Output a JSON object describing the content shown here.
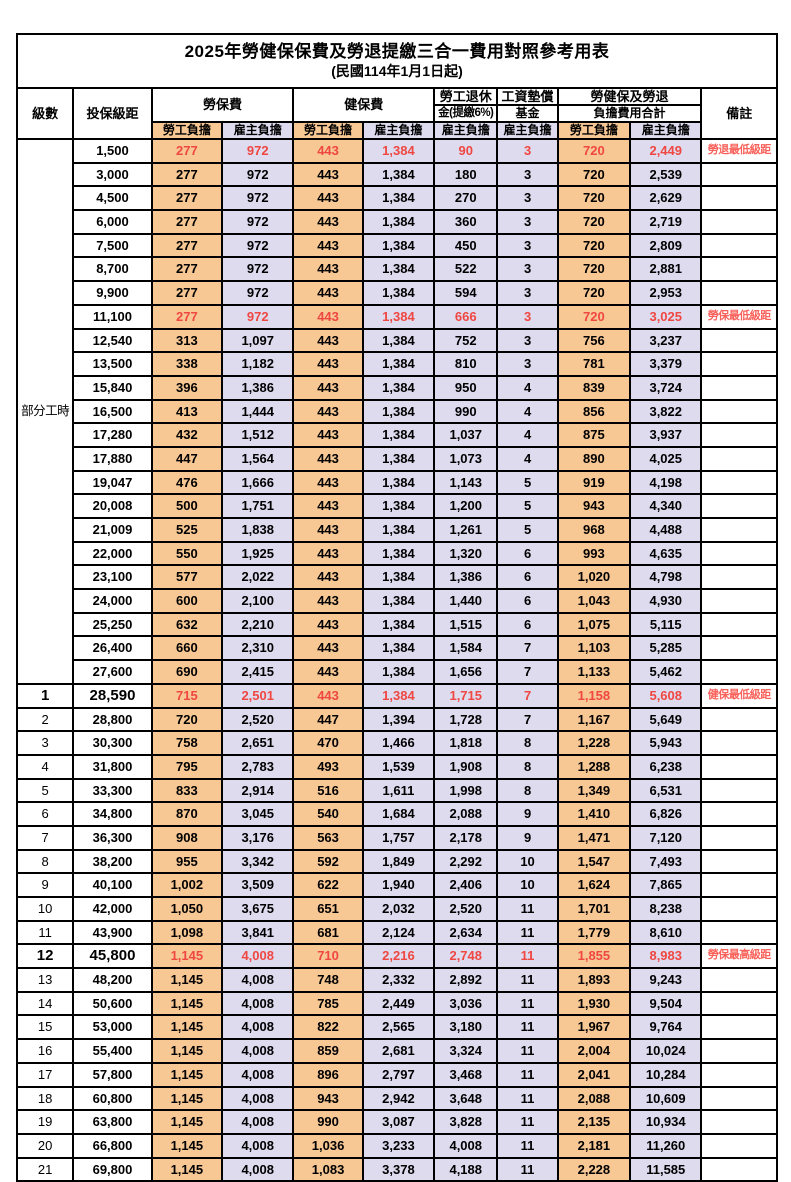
{
  "title": "2025年勞健保保費及勞退提繳三合一費用對照參考用表",
  "subtitle": "(民國114年1月1日起)",
  "header": {
    "level": "級數",
    "bracket": "投保級距",
    "labor_insurance": "勞保費",
    "health_insurance": "健保費",
    "pension_line1": "勞工退休",
    "pension_line2": "金(提繳6%)",
    "wage_fund_line1": "工資墊償",
    "wage_fund_line2": "基金",
    "total_line1": "勞健保及勞退",
    "total_line2": "負擔費用合計",
    "remark": "備註",
    "employee_share": "勞工負擔",
    "employer_share": "雇主負擔"
  },
  "part_time_label": "部分工時",
  "part_time_rowspan": 23,
  "colors": {
    "employee_bg": "#f7c794",
    "employer_bg": "#dedbef",
    "highlight_number_red": "#ef4741",
    "remark_red": "#f9625b",
    "border": "#000000"
  },
  "rows": [
    {
      "lv": "",
      "br": "1,500",
      "v": [
        "277",
        "972",
        "443",
        "1,384",
        "90",
        "3",
        "720",
        "2,449"
      ],
      "rm": "勞退最低級距",
      "red": true,
      "big": false
    },
    {
      "lv": "",
      "br": "3,000",
      "v": [
        "277",
        "972",
        "443",
        "1,384",
        "180",
        "3",
        "720",
        "2,539"
      ],
      "rm": "",
      "red": false,
      "big": false
    },
    {
      "lv": "",
      "br": "4,500",
      "v": [
        "277",
        "972",
        "443",
        "1,384",
        "270",
        "3",
        "720",
        "2,629"
      ],
      "rm": "",
      "red": false,
      "big": false
    },
    {
      "lv": "",
      "br": "6,000",
      "v": [
        "277",
        "972",
        "443",
        "1,384",
        "360",
        "3",
        "720",
        "2,719"
      ],
      "rm": "",
      "red": false,
      "big": false
    },
    {
      "lv": "",
      "br": "7,500",
      "v": [
        "277",
        "972",
        "443",
        "1,384",
        "450",
        "3",
        "720",
        "2,809"
      ],
      "rm": "",
      "red": false,
      "big": false
    },
    {
      "lv": "",
      "br": "8,700",
      "v": [
        "277",
        "972",
        "443",
        "1,384",
        "522",
        "3",
        "720",
        "2,881"
      ],
      "rm": "",
      "red": false,
      "big": false
    },
    {
      "lv": "",
      "br": "9,900",
      "v": [
        "277",
        "972",
        "443",
        "1,384",
        "594",
        "3",
        "720",
        "2,953"
      ],
      "rm": "",
      "red": false,
      "big": false
    },
    {
      "lv": "",
      "br": "11,100",
      "v": [
        "277",
        "972",
        "443",
        "1,384",
        "666",
        "3",
        "720",
        "3,025"
      ],
      "rm": "勞保最低級距",
      "red": true,
      "big": false
    },
    {
      "lv": "",
      "br": "12,540",
      "v": [
        "313",
        "1,097",
        "443",
        "1,384",
        "752",
        "3",
        "756",
        "3,237"
      ],
      "rm": "",
      "red": false,
      "big": false
    },
    {
      "lv": "",
      "br": "13,500",
      "v": [
        "338",
        "1,182",
        "443",
        "1,384",
        "810",
        "3",
        "781",
        "3,379"
      ],
      "rm": "",
      "red": false,
      "big": false
    },
    {
      "lv": "",
      "br": "15,840",
      "v": [
        "396",
        "1,386",
        "443",
        "1,384",
        "950",
        "4",
        "839",
        "3,724"
      ],
      "rm": "",
      "red": false,
      "big": false
    },
    {
      "lv": "",
      "br": "16,500",
      "v": [
        "413",
        "1,444",
        "443",
        "1,384",
        "990",
        "4",
        "856",
        "3,822"
      ],
      "rm": "",
      "red": false,
      "big": false
    },
    {
      "lv": "",
      "br": "17,280",
      "v": [
        "432",
        "1,512",
        "443",
        "1,384",
        "1,037",
        "4",
        "875",
        "3,937"
      ],
      "rm": "",
      "red": false,
      "big": false
    },
    {
      "lv": "",
      "br": "17,880",
      "v": [
        "447",
        "1,564",
        "443",
        "1,384",
        "1,073",
        "4",
        "890",
        "4,025"
      ],
      "rm": "",
      "red": false,
      "big": false
    },
    {
      "lv": "",
      "br": "19,047",
      "v": [
        "476",
        "1,666",
        "443",
        "1,384",
        "1,143",
        "5",
        "919",
        "4,198"
      ],
      "rm": "",
      "red": false,
      "big": false
    },
    {
      "lv": "",
      "br": "20,008",
      "v": [
        "500",
        "1,751",
        "443",
        "1,384",
        "1,200",
        "5",
        "943",
        "4,340"
      ],
      "rm": "",
      "red": false,
      "big": false
    },
    {
      "lv": "",
      "br": "21,009",
      "v": [
        "525",
        "1,838",
        "443",
        "1,384",
        "1,261",
        "5",
        "968",
        "4,488"
      ],
      "rm": "",
      "red": false,
      "big": false
    },
    {
      "lv": "",
      "br": "22,000",
      "v": [
        "550",
        "1,925",
        "443",
        "1,384",
        "1,320",
        "6",
        "993",
        "4,635"
      ],
      "rm": "",
      "red": false,
      "big": false
    },
    {
      "lv": "",
      "br": "23,100",
      "v": [
        "577",
        "2,022",
        "443",
        "1,384",
        "1,386",
        "6",
        "1,020",
        "4,798"
      ],
      "rm": "",
      "red": false,
      "big": false
    },
    {
      "lv": "",
      "br": "24,000",
      "v": [
        "600",
        "2,100",
        "443",
        "1,384",
        "1,440",
        "6",
        "1,043",
        "4,930"
      ],
      "rm": "",
      "red": false,
      "big": false
    },
    {
      "lv": "",
      "br": "25,250",
      "v": [
        "632",
        "2,210",
        "443",
        "1,384",
        "1,515",
        "6",
        "1,075",
        "5,115"
      ],
      "rm": "",
      "red": false,
      "big": false
    },
    {
      "lv": "",
      "br": "26,400",
      "v": [
        "660",
        "2,310",
        "443",
        "1,384",
        "1,584",
        "7",
        "1,103",
        "5,285"
      ],
      "rm": "",
      "red": false,
      "big": false
    },
    {
      "lv": "",
      "br": "27,600",
      "v": [
        "690",
        "2,415",
        "443",
        "1,384",
        "1,656",
        "7",
        "1,133",
        "5,462"
      ],
      "rm": "",
      "red": false,
      "big": false
    },
    {
      "lv": "1",
      "br": "28,590",
      "v": [
        "715",
        "2,501",
        "443",
        "1,384",
        "1,715",
        "7",
        "1,158",
        "5,608"
      ],
      "rm": "健保最低級距",
      "red": true,
      "big": true
    },
    {
      "lv": "2",
      "br": "28,800",
      "v": [
        "720",
        "2,520",
        "447",
        "1,394",
        "1,728",
        "7",
        "1,167",
        "5,649"
      ],
      "rm": "",
      "red": false,
      "big": false
    },
    {
      "lv": "3",
      "br": "30,300",
      "v": [
        "758",
        "2,651",
        "470",
        "1,466",
        "1,818",
        "8",
        "1,228",
        "5,943"
      ],
      "rm": "",
      "red": false,
      "big": false
    },
    {
      "lv": "4",
      "br": "31,800",
      "v": [
        "795",
        "2,783",
        "493",
        "1,539",
        "1,908",
        "8",
        "1,288",
        "6,238"
      ],
      "rm": "",
      "red": false,
      "big": false
    },
    {
      "lv": "5",
      "br": "33,300",
      "v": [
        "833",
        "2,914",
        "516",
        "1,611",
        "1,998",
        "8",
        "1,349",
        "6,531"
      ],
      "rm": "",
      "red": false,
      "big": false
    },
    {
      "lv": "6",
      "br": "34,800",
      "v": [
        "870",
        "3,045",
        "540",
        "1,684",
        "2,088",
        "9",
        "1,410",
        "6,826"
      ],
      "rm": "",
      "red": false,
      "big": false
    },
    {
      "lv": "7",
      "br": "36,300",
      "v": [
        "908",
        "3,176",
        "563",
        "1,757",
        "2,178",
        "9",
        "1,471",
        "7,120"
      ],
      "rm": "",
      "red": false,
      "big": false
    },
    {
      "lv": "8",
      "br": "38,200",
      "v": [
        "955",
        "3,342",
        "592",
        "1,849",
        "2,292",
        "10",
        "1,547",
        "7,493"
      ],
      "rm": "",
      "red": false,
      "big": false
    },
    {
      "lv": "9",
      "br": "40,100",
      "v": [
        "1,002",
        "3,509",
        "622",
        "1,940",
        "2,406",
        "10",
        "1,624",
        "7,865"
      ],
      "rm": "",
      "red": false,
      "big": false
    },
    {
      "lv": "10",
      "br": "42,000",
      "v": [
        "1,050",
        "3,675",
        "651",
        "2,032",
        "2,520",
        "11",
        "1,701",
        "8,238"
      ],
      "rm": "",
      "red": false,
      "big": false
    },
    {
      "lv": "11",
      "br": "43,900",
      "v": [
        "1,098",
        "3,841",
        "681",
        "2,124",
        "2,634",
        "11",
        "1,779",
        "8,610"
      ],
      "rm": "",
      "red": false,
      "big": false
    },
    {
      "lv": "12",
      "br": "45,800",
      "v": [
        "1,145",
        "4,008",
        "710",
        "2,216",
        "2,748",
        "11",
        "1,855",
        "8,983"
      ],
      "rm": "勞保最高級距",
      "red": true,
      "big": true
    },
    {
      "lv": "13",
      "br": "48,200",
      "v": [
        "1,145",
        "4,008",
        "748",
        "2,332",
        "2,892",
        "11",
        "1,893",
        "9,243"
      ],
      "rm": "",
      "red": false,
      "big": false
    },
    {
      "lv": "14",
      "br": "50,600",
      "v": [
        "1,145",
        "4,008",
        "785",
        "2,449",
        "3,036",
        "11",
        "1,930",
        "9,504"
      ],
      "rm": "",
      "red": false,
      "big": false
    },
    {
      "lv": "15",
      "br": "53,000",
      "v": [
        "1,145",
        "4,008",
        "822",
        "2,565",
        "3,180",
        "11",
        "1,967",
        "9,764"
      ],
      "rm": "",
      "red": false,
      "big": false
    },
    {
      "lv": "16",
      "br": "55,400",
      "v": [
        "1,145",
        "4,008",
        "859",
        "2,681",
        "3,324",
        "11",
        "2,004",
        "10,024"
      ],
      "rm": "",
      "red": false,
      "big": false
    },
    {
      "lv": "17",
      "br": "57,800",
      "v": [
        "1,145",
        "4,008",
        "896",
        "2,797",
        "3,468",
        "11",
        "2,041",
        "10,284"
      ],
      "rm": "",
      "red": false,
      "big": false
    },
    {
      "lv": "18",
      "br": "60,800",
      "v": [
        "1,145",
        "4,008",
        "943",
        "2,942",
        "3,648",
        "11",
        "2,088",
        "10,609"
      ],
      "rm": "",
      "red": false,
      "big": false
    },
    {
      "lv": "19",
      "br": "63,800",
      "v": [
        "1,145",
        "4,008",
        "990",
        "3,087",
        "3,828",
        "11",
        "2,135",
        "10,934"
      ],
      "rm": "",
      "red": false,
      "big": false
    },
    {
      "lv": "20",
      "br": "66,800",
      "v": [
        "1,145",
        "4,008",
        "1,036",
        "3,233",
        "4,008",
        "11",
        "2,181",
        "11,260"
      ],
      "rm": "",
      "red": false,
      "big": false
    },
    {
      "lv": "21",
      "br": "69,800",
      "v": [
        "1,145",
        "4,008",
        "1,083",
        "3,378",
        "4,188",
        "11",
        "2,228",
        "11,585"
      ],
      "rm": "",
      "red": false,
      "big": false
    }
  ]
}
